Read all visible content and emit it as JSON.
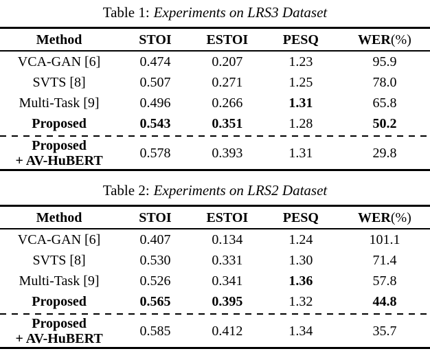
{
  "page": {
    "background": "#ffffff",
    "text_color": "#000000"
  },
  "tables": [
    {
      "caption": {
        "prefix": "Table 1:",
        "title": "Experiments on LRS3 Dataset"
      },
      "columns": [
        {
          "label": "Method"
        },
        {
          "label": "STOI"
        },
        {
          "label": "ESTOI"
        },
        {
          "label": "PESQ"
        },
        {
          "label": "WER",
          "suffix": "(%)"
        }
      ],
      "rows": [
        {
          "method": "VCA-GAN [6]",
          "stoi": "0.474",
          "estoi": "0.207",
          "pesq": "1.23",
          "wer": "95.9",
          "bold": []
        },
        {
          "method": "SVTS [8]",
          "stoi": "0.507",
          "estoi": "0.271",
          "pesq": "1.25",
          "wer": "78.0",
          "bold": []
        },
        {
          "method": "Multi-Task [9]",
          "stoi": "0.496",
          "estoi": "0.266",
          "pesq": "1.31",
          "wer": "65.8",
          "bold": [
            "pesq"
          ]
        },
        {
          "method": "Proposed",
          "stoi": "0.543",
          "estoi": "0.351",
          "pesq": "1.28",
          "wer": "50.2",
          "bold": [
            "method",
            "stoi",
            "estoi",
            "wer"
          ]
        },
        {
          "method": "Proposed",
          "method_line2": "+ AV-HuBERT",
          "stoi": "0.578",
          "estoi": "0.393",
          "pesq": "1.31",
          "wer": "29.8",
          "bold": [
            "method"
          ]
        }
      ]
    },
    {
      "caption": {
        "prefix": "Table 2:",
        "title": "Experiments on LRS2 Dataset"
      },
      "columns": [
        {
          "label": "Method"
        },
        {
          "label": "STOI"
        },
        {
          "label": "ESTOI"
        },
        {
          "label": "PESQ"
        },
        {
          "label": "WER",
          "suffix": "(%)"
        }
      ],
      "rows": [
        {
          "method": "VCA-GAN [6]",
          "stoi": "0.407",
          "estoi": "0.134",
          "pesq": "1.24",
          "wer": "101.1",
          "bold": []
        },
        {
          "method": "SVTS [8]",
          "stoi": "0.530",
          "estoi": "0.331",
          "pesq": "1.30",
          "wer": "71.4",
          "bold": []
        },
        {
          "method": "Multi-Task [9]",
          "stoi": "0.526",
          "estoi": "0.341",
          "pesq": "1.36",
          "wer": "57.8",
          "bold": [
            "pesq"
          ]
        },
        {
          "method": "Proposed",
          "stoi": "0.565",
          "estoi": "0.395",
          "pesq": "1.32",
          "wer": "44.8",
          "bold": [
            "method",
            "stoi",
            "estoi",
            "wer"
          ]
        },
        {
          "method": "Proposed",
          "method_line2": "+ AV-HuBERT",
          "stoi": "0.585",
          "estoi": "0.412",
          "pesq": "1.34",
          "wer": "35.7",
          "bold": [
            "method"
          ]
        }
      ]
    }
  ]
}
